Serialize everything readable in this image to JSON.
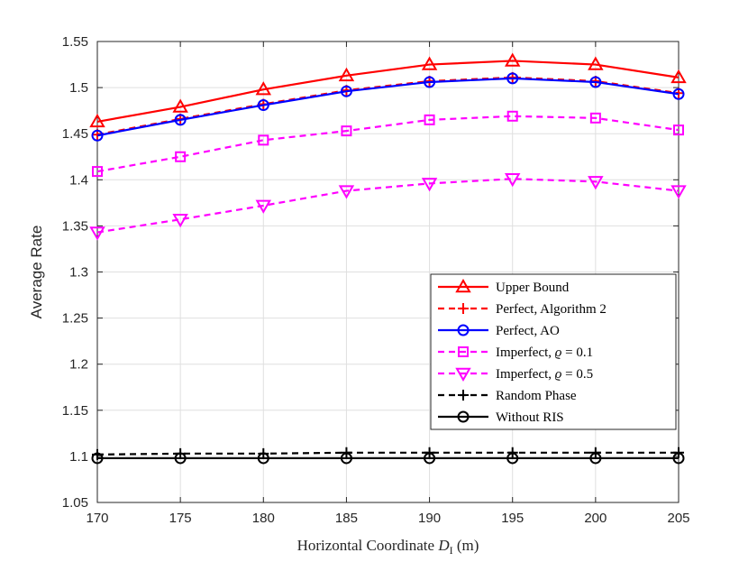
{
  "chart_data": {
    "type": "line",
    "title": "",
    "xlabel_text": "Horizontal Coordinate ",
    "xlabel_symbol": "D",
    "xlabel_subscript": "I",
    "xlabel_unit": " (m)",
    "ylabel": "Average Rate",
    "x": [
      170,
      175,
      180,
      185,
      190,
      195,
      200,
      205
    ],
    "xlim": [
      170,
      205
    ],
    "ylim": [
      1.05,
      1.55
    ],
    "xticks": [
      170,
      175,
      180,
      185,
      190,
      195,
      200,
      205
    ],
    "xtick_labels": [
      "170",
      "175",
      "180",
      "185",
      "190",
      "195",
      "200",
      "205"
    ],
    "yticks": [
      1.05,
      1.1,
      1.15,
      1.2,
      1.25,
      1.3,
      1.35,
      1.4,
      1.45,
      1.5,
      1.55
    ],
    "ytick_labels": [
      "1.05",
      "1.1",
      "1.15",
      "1.2",
      "1.25",
      "1.3",
      "1.35",
      "1.4",
      "1.45",
      "1.5",
      "1.55"
    ],
    "grid": true,
    "legend_position": "bottom-right",
    "series": [
      {
        "name": "Upper Bound",
        "color": "#ff0000",
        "dash": "solid",
        "marker": "triangle-up",
        "values": [
          1.463,
          1.479,
          1.498,
          1.513,
          1.525,
          1.529,
          1.525,
          1.511
        ]
      },
      {
        "name": "Perfect, Algorithm 2",
        "color": "#ff0000",
        "dash": "dashed",
        "marker": "plus",
        "values": [
          1.449,
          1.466,
          1.482,
          1.497,
          1.507,
          1.511,
          1.507,
          1.494
        ]
      },
      {
        "name": "Perfect, AO",
        "color": "#0000ff",
        "dash": "solid",
        "marker": "circle",
        "values": [
          1.448,
          1.465,
          1.481,
          1.496,
          1.506,
          1.51,
          1.506,
          1.493
        ]
      },
      {
        "name": "Imperfect, ",
        "symbol": "ϱ",
        "suffix": " = 0.1",
        "color": "#ff00ff",
        "dash": "dashed",
        "marker": "square",
        "values": [
          1.409,
          1.425,
          1.443,
          1.453,
          1.465,
          1.469,
          1.467,
          1.454
        ]
      },
      {
        "name": "Imperfect, ",
        "symbol": "ϱ",
        "suffix": " = 0.5",
        "color": "#ff00ff",
        "dash": "dashed",
        "marker": "triangle-down",
        "values": [
          1.343,
          1.357,
          1.372,
          1.388,
          1.396,
          1.401,
          1.398,
          1.388
        ]
      },
      {
        "name": "Random Phase",
        "color": "#000000",
        "dash": "dashed",
        "marker": "plus",
        "values": [
          1.102,
          1.103,
          1.103,
          1.104,
          1.104,
          1.104,
          1.104,
          1.104
        ]
      },
      {
        "name": "Without RIS",
        "color": "#000000",
        "dash": "solid",
        "marker": "circle",
        "values": [
          1.098,
          1.098,
          1.098,
          1.098,
          1.098,
          1.098,
          1.098,
          1.098
        ]
      }
    ]
  }
}
